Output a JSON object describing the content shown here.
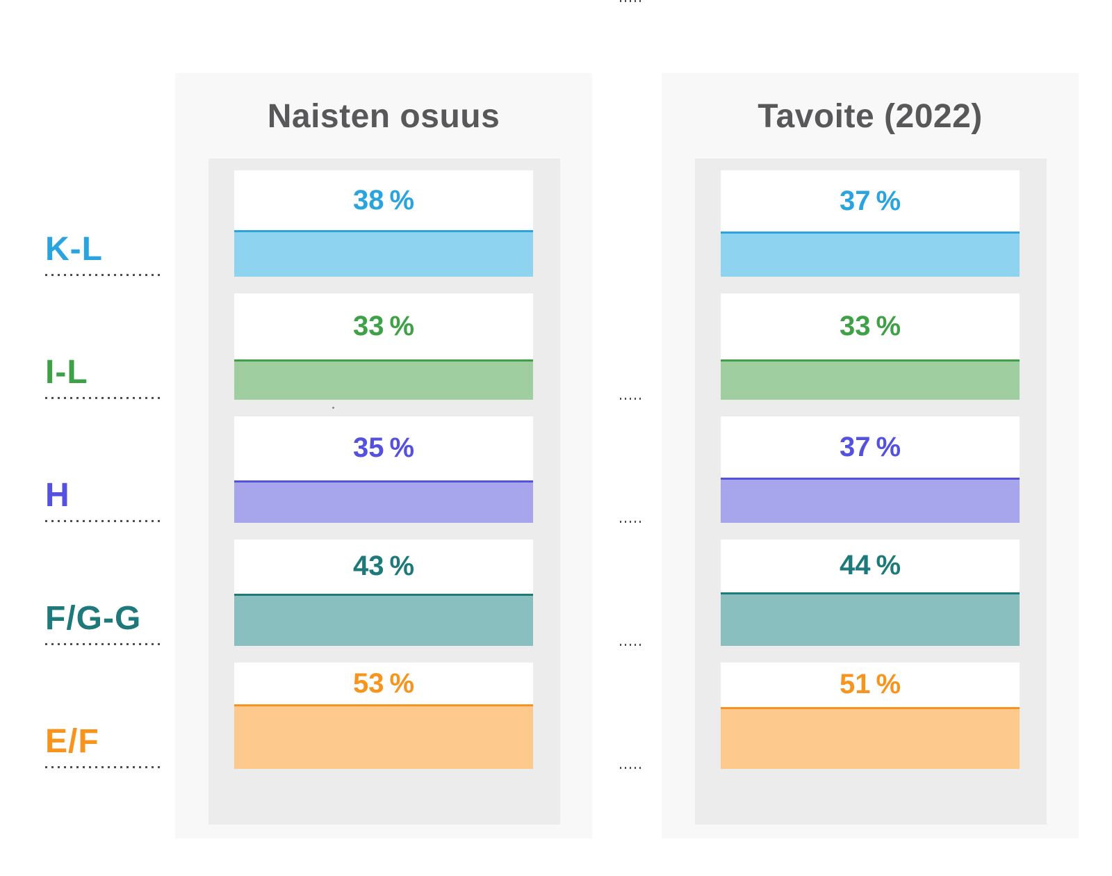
{
  "chart_data": {
    "type": "bar",
    "subtype": "paired filled-card percentage columns",
    "categories": [
      "K-L",
      "I-L",
      "H",
      "F/G-G",
      "E/F"
    ],
    "series": [
      {
        "name": "Naisten osuus",
        "values": [
          38,
          33,
          35,
          43,
          53
        ]
      },
      {
        "name": "Tavoite (2022)",
        "values": [
          37,
          33,
          37,
          44,
          51
        ]
      }
    ],
    "unit": "%",
    "value_range": [
      0,
      100
    ],
    "legend_position": "column headers",
    "grid": false
  },
  "columns": [
    {
      "title": "Naisten osuus"
    },
    {
      "title": "Tavoite (2022)"
    }
  ],
  "rows": [
    {
      "label": "K-L",
      "color": "#2aa3df",
      "fill_color": "#8ed3f0",
      "naisten": 38,
      "tavoite": 37,
      "naisten_display": "38 %",
      "tavoite_display": "37 %"
    },
    {
      "label": "I-L",
      "color": "#3ea047",
      "fill_color": "#9fcea0",
      "naisten": 33,
      "tavoite": 33,
      "naisten_display": "33 %",
      "tavoite_display": "33 %"
    },
    {
      "label": "H",
      "color": "#5551df",
      "fill_color": "#a7a5eb",
      "naisten": 35,
      "tavoite": 37,
      "naisten_display": "35 %",
      "tavoite_display": "37 %"
    },
    {
      "label": "F/G-G",
      "color": "#1e797b",
      "fill_color": "#8abfc0",
      "naisten": 43,
      "tavoite": 44,
      "naisten_display": "43 %",
      "tavoite_display": "44 %"
    },
    {
      "label": "E/F",
      "color": "#f7941e",
      "fill_color": "#fdc98d",
      "naisten": 53,
      "tavoite": 51,
      "naisten_display": "53 %",
      "tavoite_display": "51 %"
    }
  ],
  "colors": {
    "page_bg": "#ffffff",
    "panel_bg": "#f8f8f8",
    "inner_bg": "#ececec",
    "card_bg": "#ffffff",
    "title_text": "#58585a",
    "dotted_line": "#4d4d4d"
  }
}
